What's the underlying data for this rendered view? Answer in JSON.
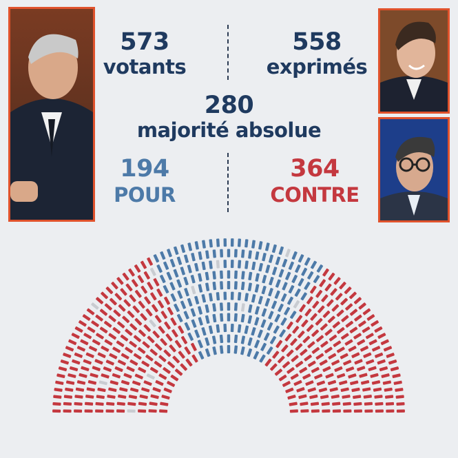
{
  "stats": {
    "votants": {
      "number": "573",
      "label": "votants"
    },
    "exprimes": {
      "number": "558",
      "label": "exprimés"
    },
    "majorite": {
      "number": "280",
      "label": "majorité absolue"
    },
    "pour": {
      "number": "194",
      "label": "POUR"
    },
    "contre": {
      "number": "364",
      "label": "CONTRE"
    }
  },
  "colors": {
    "pour": "#4d7aa8",
    "contre": "#c4383f",
    "abstention": "#c9ccd1",
    "text_dark": "#1f3a5f",
    "frame": "#e0522c",
    "background": "#eceef1"
  },
  "hemicycle": {
    "pour": 194,
    "contre": 364,
    "abstention": 15
  }
}
